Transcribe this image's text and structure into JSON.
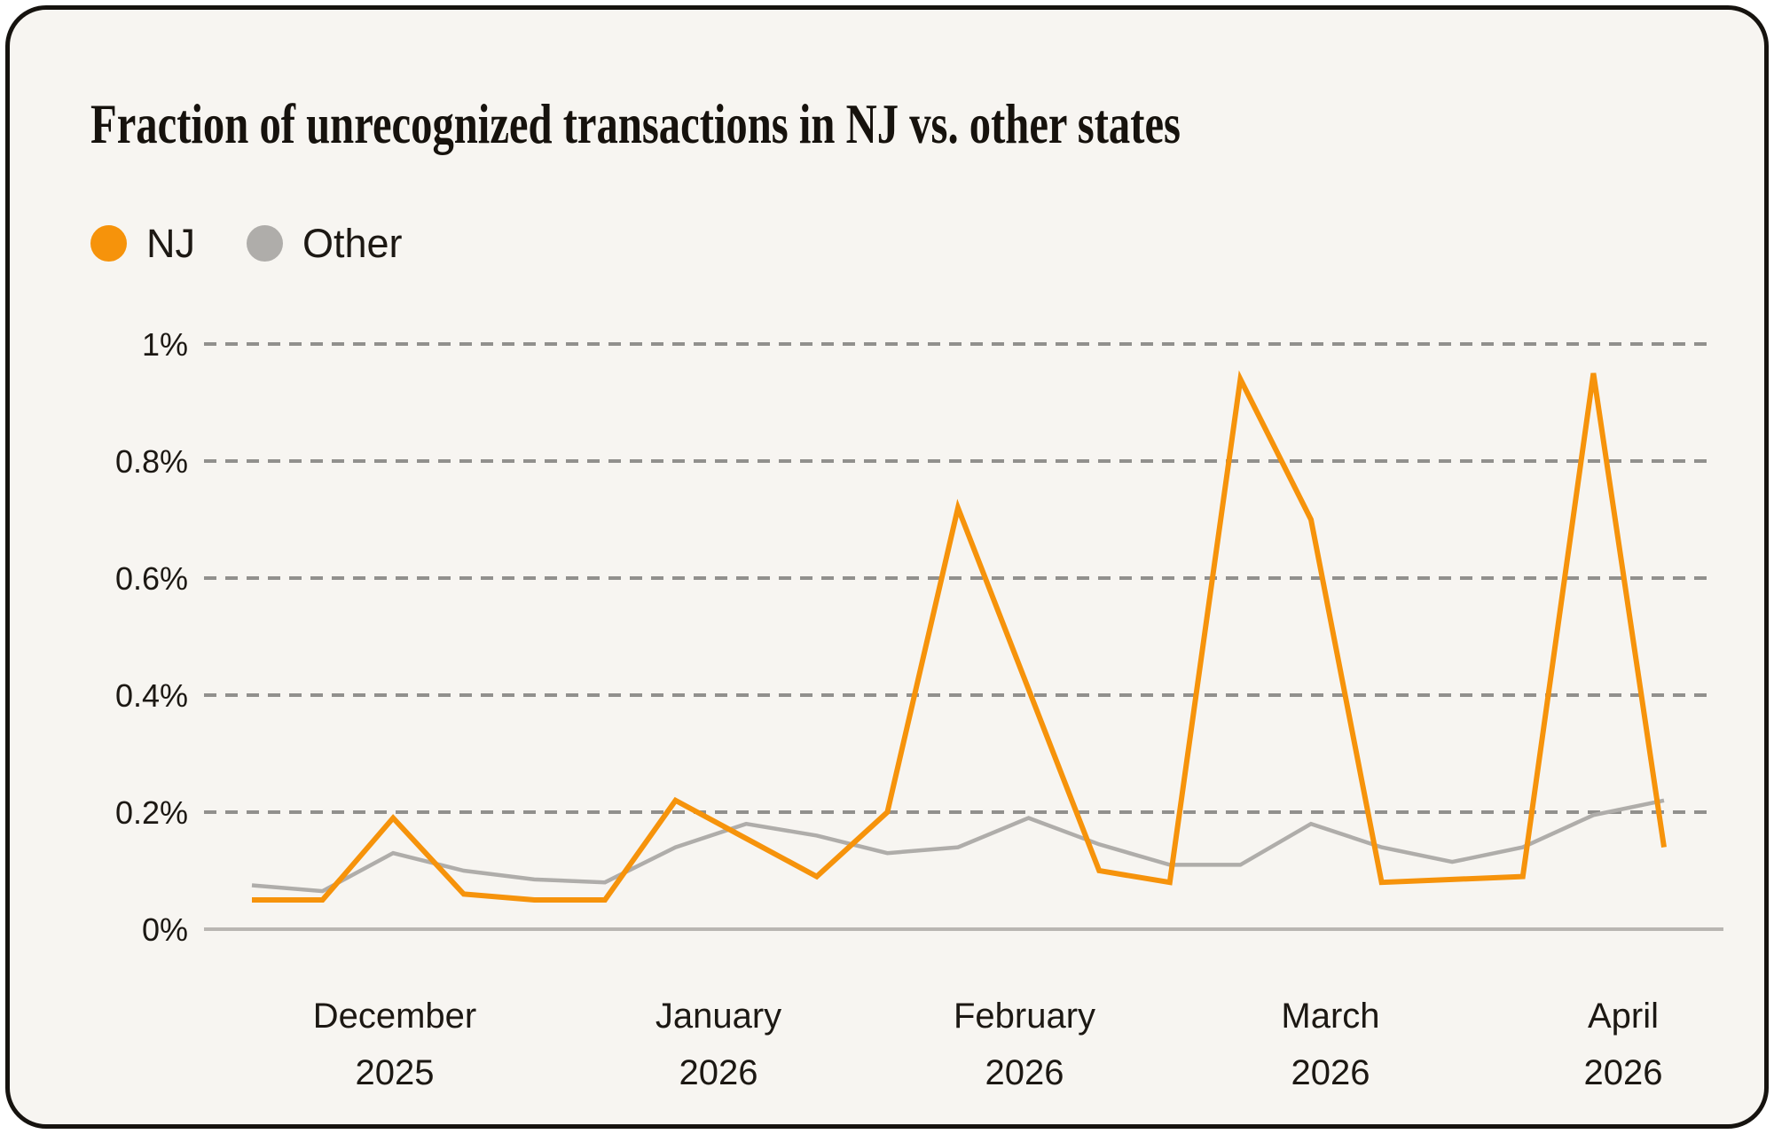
{
  "chart_data": {
    "type": "line",
    "title": "Fraction of unrecognized transactions in NJ vs. other states",
    "x_unit": "week",
    "n_points": 21,
    "grid": "horizontal-dashed",
    "legend_position": "top-left",
    "y_axis": {
      "min": 0,
      "max": 1,
      "unit": "%",
      "tick_step": 0.2,
      "tick_labels": [
        "0%",
        "0.2%",
        "0.4%",
        "0.6%",
        "0.8%",
        "1%"
      ]
    },
    "x_axis": {
      "tick_labels": [
        {
          "month": "December",
          "year": "2025"
        },
        {
          "month": "January",
          "year": "2026"
        },
        {
          "month": "February",
          "year": "2026"
        },
        {
          "month": "March",
          "year": "2026"
        },
        {
          "month": "April",
          "year": "2026"
        }
      ]
    },
    "series": [
      {
        "name": "NJ",
        "color": "#F6930B",
        "values": [
          0.05,
          0.05,
          0.19,
          0.06,
          0.05,
          0.05,
          0.22,
          0.155,
          0.09,
          0.2,
          0.72,
          0.41,
          0.1,
          0.08,
          0.94,
          0.7,
          0.08,
          0.085,
          0.09,
          0.95,
          0.14
        ]
      },
      {
        "name": "Other",
        "color": "#AFADAA",
        "values": [
          0.075,
          0.065,
          0.13,
          0.1,
          0.085,
          0.08,
          0.14,
          0.18,
          0.16,
          0.13,
          0.14,
          0.19,
          0.145,
          0.11,
          0.11,
          0.18,
          0.14,
          0.115,
          0.14,
          0.195,
          0.22
        ]
      }
    ],
    "colors": {
      "card_background": "#F7F5F1",
      "card_border": "#16130F",
      "gridline_dash": "#91908D",
      "axis_line": "#B9B6B2",
      "text": "#1C1813"
    }
  }
}
